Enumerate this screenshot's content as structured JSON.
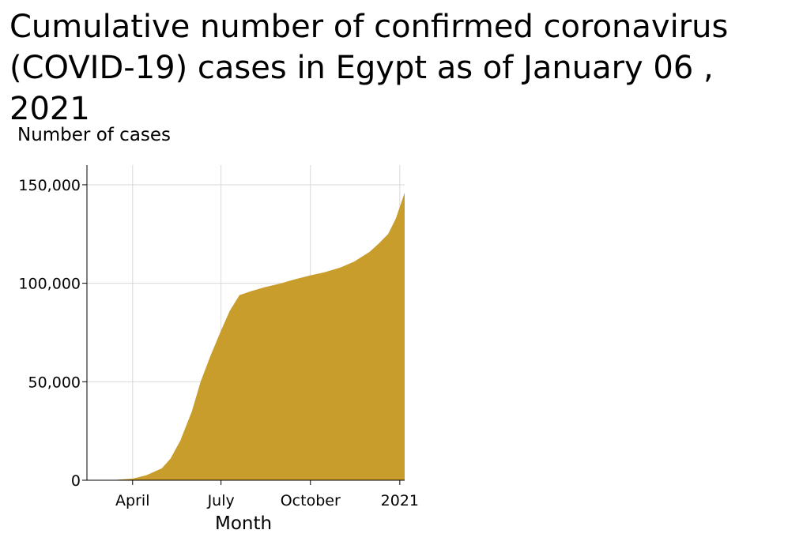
{
  "chart_data": {
    "type": "area",
    "title": "Cumulative number of confirmed coronavirus (COVID-19) cases in Egypt as of January 06 , 2021",
    "xlabel": "Month",
    "ylabel": "Number of cases",
    "x_ticks": [
      {
        "label": "April",
        "date": "2020-04-01"
      },
      {
        "label": "July",
        "date": "2020-07-01"
      },
      {
        "label": "October",
        "date": "2020-10-01"
      },
      {
        "label": "2021",
        "date": "2021-01-01"
      }
    ],
    "y_ticks": [
      {
        "label": "0",
        "value": 0
      },
      {
        "label": "50,000",
        "value": 50000
      },
      {
        "label": "100,000",
        "value": 100000
      },
      {
        "label": "150,000",
        "value": 150000
      }
    ],
    "xlim": [
      "2020-02-14",
      "2021-01-06"
    ],
    "ylim": [
      0,
      160000
    ],
    "grid": true,
    "fill_color": "#c99d2b",
    "series": [
      {
        "x": [
          "2020-02-14",
          "2020-03-15",
          "2020-04-01",
          "2020-04-15",
          "2020-05-01",
          "2020-05-10",
          "2020-05-20",
          "2020-06-01",
          "2020-06-10",
          "2020-06-20",
          "2020-07-01",
          "2020-07-10",
          "2020-07-20",
          "2020-08-01",
          "2020-08-15",
          "2020-09-01",
          "2020-09-15",
          "2020-10-01",
          "2020-10-15",
          "2020-11-01",
          "2020-11-15",
          "2020-12-01",
          "2020-12-10",
          "2020-12-20",
          "2020-12-28",
          "2021-01-06"
        ],
        "y": [
          0,
          200,
          800,
          2500,
          6000,
          11000,
          20000,
          35000,
          50000,
          63000,
          76000,
          86000,
          94000,
          96000,
          98000,
          100000,
          102000,
          104000,
          105500,
          108000,
          111000,
          116000,
          120000,
          125000,
          133000,
          146000
        ]
      }
    ]
  }
}
